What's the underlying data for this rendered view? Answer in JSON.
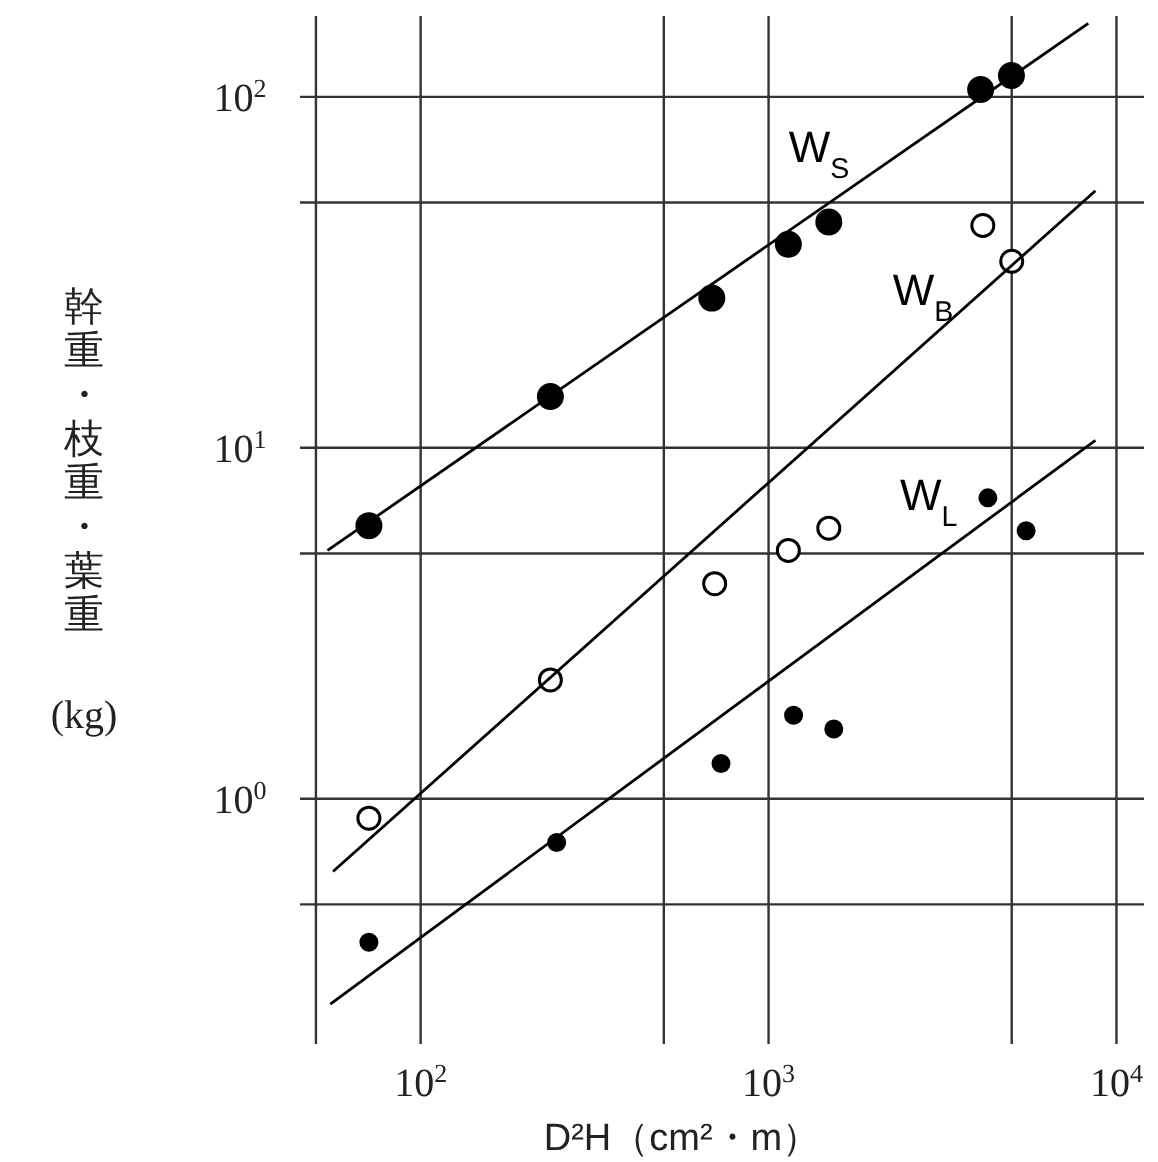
{
  "chart_data": {
    "type": "scatter",
    "xlabel": "D²H（cm²・m）",
    "ylabel": "幹重・枝重・葉重 (kg)",
    "log": "xy",
    "xlim": [
      45,
      12000
    ],
    "ylim": [
      0.2,
      170
    ],
    "xticks": [
      {
        "value": 50,
        "label": null
      },
      {
        "value": 100,
        "label": "10$^{2}$"
      },
      {
        "value": 500,
        "label": null
      },
      {
        "value": 1000,
        "label": "10$^{3}$"
      },
      {
        "value": 5000,
        "label": null
      },
      {
        "value": 10000,
        "label": "10$^{4}$"
      }
    ],
    "yticks": [
      {
        "value": 0.5,
        "label": null
      },
      {
        "value": 1,
        "label": "10$^{0}$"
      },
      {
        "value": 5,
        "label": null
      },
      {
        "value": 10,
        "label": "10$^{1}$"
      },
      {
        "value": 50,
        "label": null
      },
      {
        "value": 100,
        "label": "10$^{2}$"
      }
    ],
    "grid": true,
    "line_style": "solid",
    "series": [
      {
        "name": "W$_{S}$",
        "color": "#000000",
        "marker": "circle",
        "x": [
          71,
          236,
          687,
          1140,
          1490,
          4070,
          4990
        ],
        "values": [
          6.0,
          14.0,
          26.7,
          38,
          44,
          105,
          115
        ]
      },
      {
        "name": "W$_{B}$",
        "color": "#ffffff",
        "marker": "circle",
        "x": [
          71,
          236,
          700,
          1140,
          1490,
          4130,
          5000
        ],
        "values": [
          0.88,
          2.18,
          4.1,
          5.1,
          5.9,
          43,
          34
        ]
      },
      {
        "name": "W$_{L}$",
        "color": "#000000",
        "marker": "circle",
        "x": [
          71,
          246,
          730,
          1180,
          1540,
          4270,
          5500
        ],
        "values": [
          0.39,
          0.75,
          1.26,
          1.73,
          1.58,
          7.2,
          5.8
        ]
      },
      {
        "type": "line",
        "color": "#000000",
        "x": [
          54,
          8300
        ],
        "values": [
          5.1,
          162
        ]
      },
      {
        "type": "line",
        "color": "#000000",
        "x": [
          56,
          8700
        ],
        "values": [
          0.62,
          54
        ]
      },
      {
        "type": "line",
        "color": "#000000",
        "x": [
          55,
          8700
        ],
        "values": [
          0.26,
          10.5
        ]
      }
    ]
  }
}
